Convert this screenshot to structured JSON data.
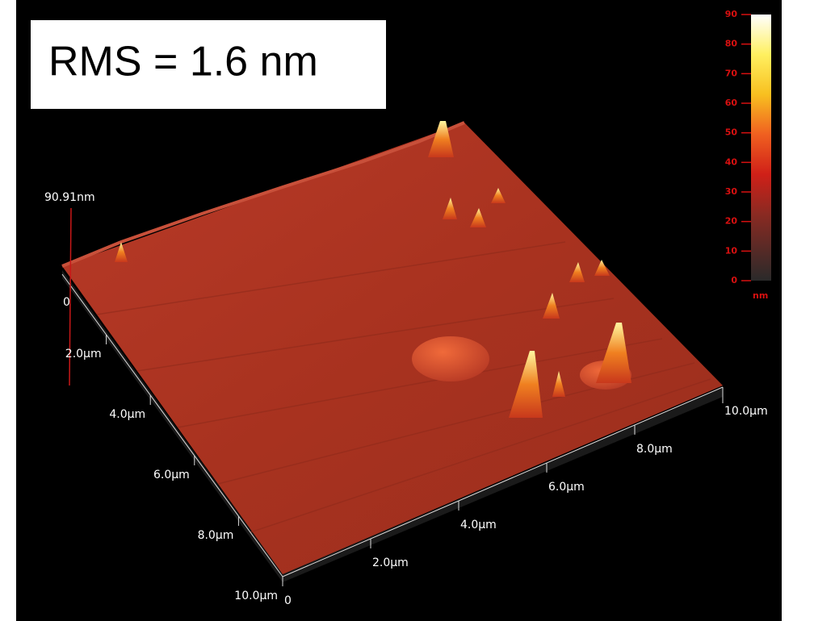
{
  "annotation": "RMS = 1.6 nm",
  "z_axis": {
    "max_label": "90.91nm",
    "zero_label": "0"
  },
  "left_axis": {
    "labels": [
      "2.0µm",
      "4.0µm",
      "6.0µm",
      "8.0µm",
      "10.0µm"
    ]
  },
  "right_axis": {
    "labels": [
      "0",
      "2.0µm",
      "4.0µm",
      "6.0µm",
      "8.0µm",
      "10.0µm"
    ]
  },
  "colorbar": {
    "ticks": [
      0,
      10,
      20,
      30,
      40,
      50,
      60,
      70,
      80,
      90
    ],
    "unit": "nm"
  }
}
